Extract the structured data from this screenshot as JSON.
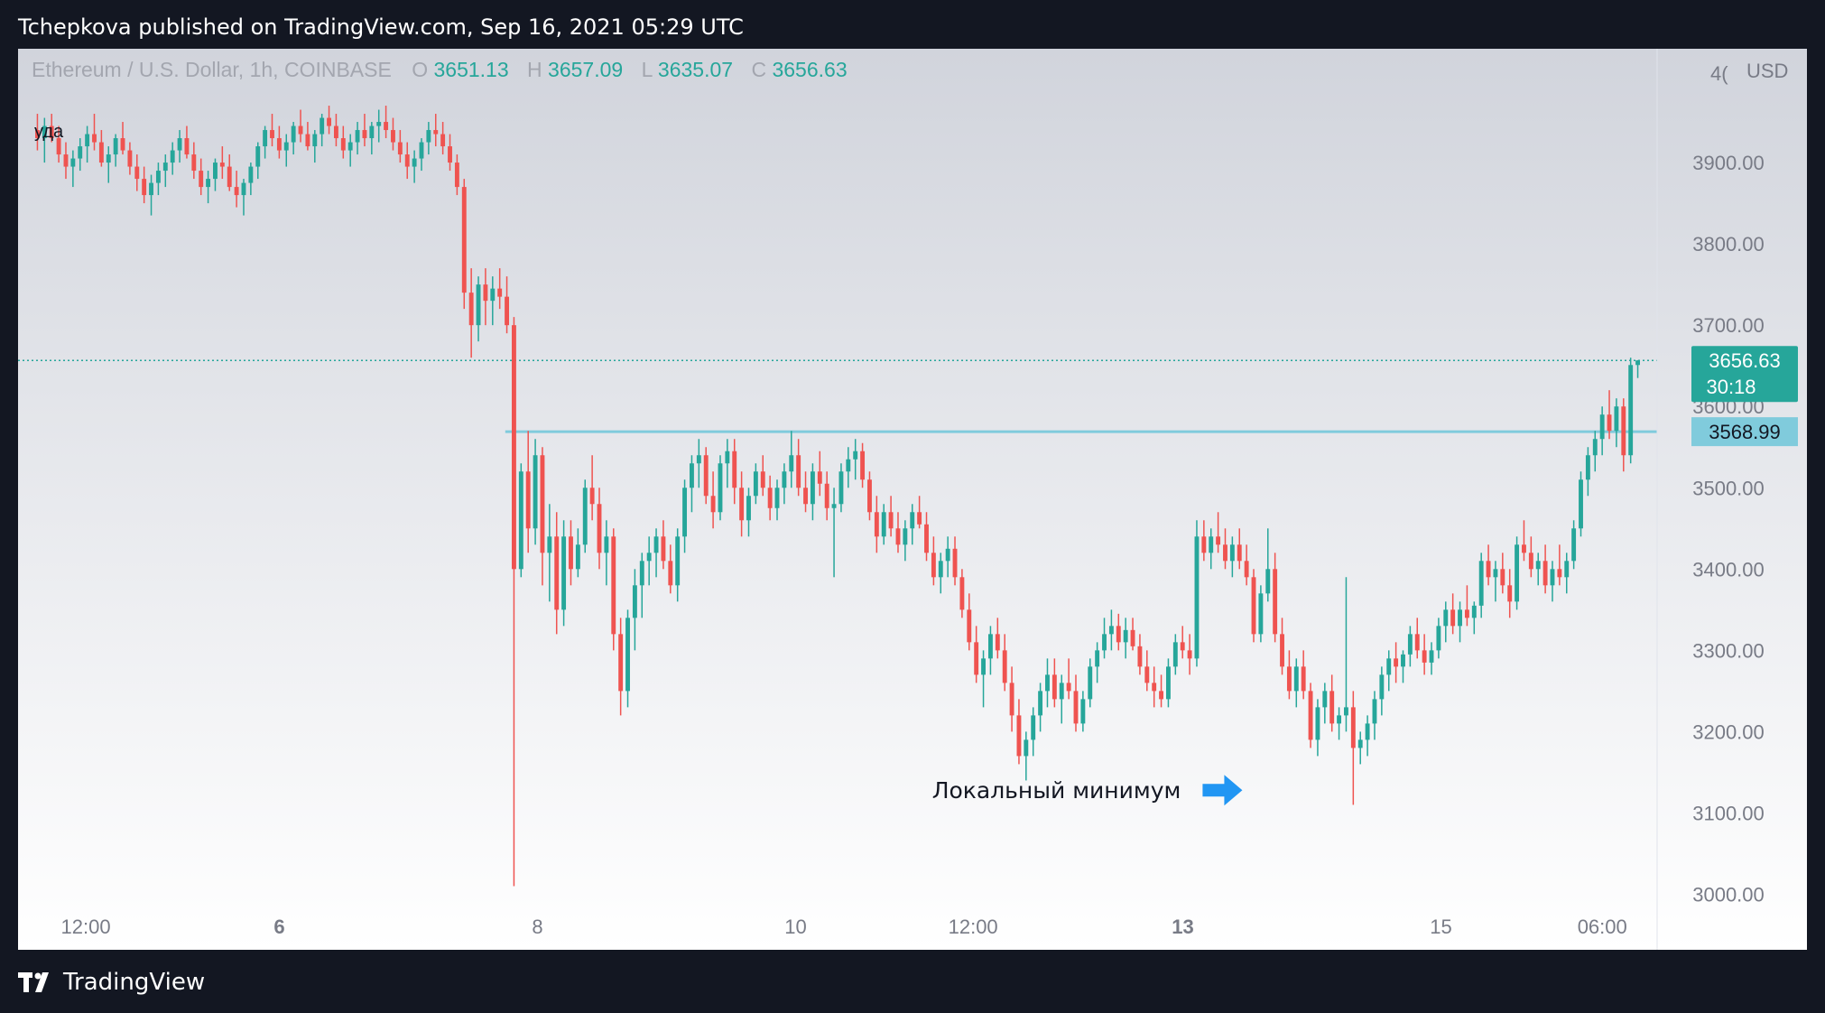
{
  "header": {
    "text": "Tchepkova published on TradingView.com, Sep 16, 2021 05:29 UTC"
  },
  "footer": {
    "brand": "TradingView"
  },
  "chart_data": {
    "type": "candlestick",
    "symbol": "Ethereum / U.S. Dollar, 1h, COINBASE",
    "ohlc": {
      "o_label": "O",
      "o": "3651.13",
      "h_label": "H",
      "h": "3657.09",
      "l_label": "L",
      "l": "3635.07",
      "c_label": "C",
      "c": "3656.63"
    },
    "currency": "USD",
    "y_ticks": [
      3000,
      3100,
      3200,
      3300,
      3400,
      3500,
      3600,
      3700,
      3800,
      3900
    ],
    "y_tick_labels": [
      "3000.00",
      "3100.00",
      "3200.00",
      "3300.00",
      "3400.00",
      "3500.00",
      "3600.00",
      "3700.00",
      "3800.00",
      "3900.00"
    ],
    "ylim": [
      2985,
      4040
    ],
    "x_ticks": [
      {
        "label": "12:00",
        "t": 1.5,
        "bold": false
      },
      {
        "label": "6",
        "t": 7.5,
        "bold": true
      },
      {
        "label": "8",
        "t": 15.5,
        "bold": false
      },
      {
        "label": "10",
        "t": 23.5,
        "bold": false
      },
      {
        "label": "12:00",
        "t": 29.0,
        "bold": false
      },
      {
        "label": "13",
        "t": 35.5,
        "bold": true
      },
      {
        "label": "15",
        "t": 43.5,
        "bold": false
      },
      {
        "label": "06:00",
        "t": 48.5,
        "bold": false
      }
    ],
    "xlim": [
      -0.6,
      50.2
    ],
    "last_price": {
      "value": 3656.63,
      "label": "3656.63",
      "countdown": "30:18",
      "color": "#26a69a"
    },
    "horizontal_line": {
      "value": 3568.99,
      "label": "3568.99",
      "from_t": 14.5,
      "color": "#80cbdc"
    },
    "annotation": {
      "text": "Локальный минимум",
      "arrow_at_value": 3128,
      "arrow_t": 37.4
    },
    "partial_label": "4(",
    "overlay_text": "уда",
    "colors": {
      "up": "#26a69a",
      "down": "#ef5350",
      "arrow": "#2196f3"
    },
    "candles": [
      [
        3940,
        3960,
        3915,
        3930
      ],
      [
        3930,
        3955,
        3900,
        3945
      ],
      [
        3945,
        3960,
        3925,
        3930
      ],
      [
        3930,
        3945,
        3900,
        3910
      ],
      [
        3910,
        3925,
        3880,
        3895
      ],
      [
        3895,
        3915,
        3870,
        3905
      ],
      [
        3905,
        3930,
        3890,
        3920
      ],
      [
        3920,
        3945,
        3900,
        3935
      ],
      [
        3935,
        3960,
        3915,
        3925
      ],
      [
        3925,
        3940,
        3895,
        3900
      ],
      [
        3900,
        3920,
        3875,
        3910
      ],
      [
        3910,
        3935,
        3895,
        3930
      ],
      [
        3930,
        3950,
        3910,
        3915
      ],
      [
        3915,
        3925,
        3885,
        3895
      ],
      [
        3895,
        3910,
        3865,
        3880
      ],
      [
        3880,
        3895,
        3850,
        3860
      ],
      [
        3860,
        3885,
        3835,
        3875
      ],
      [
        3875,
        3900,
        3860,
        3890
      ],
      [
        3890,
        3910,
        3870,
        3900
      ],
      [
        3900,
        3925,
        3885,
        3915
      ],
      [
        3915,
        3940,
        3900,
        3930
      ],
      [
        3930,
        3945,
        3905,
        3910
      ],
      [
        3910,
        3925,
        3880,
        3890
      ],
      [
        3890,
        3905,
        3860,
        3870
      ],
      [
        3870,
        3890,
        3850,
        3880
      ],
      [
        3880,
        3905,
        3865,
        3900
      ],
      [
        3900,
        3920,
        3880,
        3895
      ],
      [
        3895,
        3910,
        3865,
        3870
      ],
      [
        3870,
        3890,
        3845,
        3860
      ],
      [
        3860,
        3880,
        3835,
        3875
      ],
      [
        3875,
        3900,
        3860,
        3895
      ],
      [
        3895,
        3925,
        3880,
        3920
      ],
      [
        3920,
        3945,
        3905,
        3940
      ],
      [
        3940,
        3960,
        3920,
        3930
      ],
      [
        3930,
        3945,
        3905,
        3915
      ],
      [
        3915,
        3935,
        3895,
        3925
      ],
      [
        3925,
        3950,
        3910,
        3945
      ],
      [
        3945,
        3965,
        3925,
        3935
      ],
      [
        3935,
        3950,
        3915,
        3920
      ],
      [
        3920,
        3940,
        3900,
        3935
      ],
      [
        3935,
        3960,
        3920,
        3955
      ],
      [
        3955,
        3970,
        3935,
        3945
      ],
      [
        3945,
        3960,
        3920,
        3930
      ],
      [
        3930,
        3945,
        3905,
        3915
      ],
      [
        3915,
        3935,
        3895,
        3925
      ],
      [
        3925,
        3950,
        3910,
        3940
      ],
      [
        3940,
        3960,
        3920,
        3930
      ],
      [
        3930,
        3950,
        3910,
        3945
      ],
      [
        3945,
        3965,
        3925,
        3950
      ],
      [
        3950,
        3970,
        3930,
        3940
      ],
      [
        3940,
        3955,
        3915,
        3925
      ],
      [
        3925,
        3940,
        3900,
        3910
      ],
      [
        3910,
        3925,
        3880,
        3895
      ],
      [
        3895,
        3915,
        3875,
        3905
      ],
      [
        3905,
        3930,
        3890,
        3925
      ],
      [
        3925,
        3950,
        3910,
        3940
      ],
      [
        3940,
        3960,
        3920,
        3935
      ],
      [
        3935,
        3950,
        3910,
        3920
      ],
      [
        3920,
        3935,
        3890,
        3900
      ],
      [
        3900,
        3910,
        3860,
        3870
      ],
      [
        3870,
        3880,
        3720,
        3740
      ],
      [
        3740,
        3770,
        3660,
        3700
      ],
      [
        3700,
        3760,
        3680,
        3750
      ],
      [
        3750,
        3770,
        3700,
        3730
      ],
      [
        3730,
        3760,
        3700,
        3745
      ],
      [
        3745,
        3770,
        3720,
        3735
      ],
      [
        3735,
        3760,
        3690,
        3700
      ],
      [
        3700,
        3710,
        3010,
        3400
      ],
      [
        3400,
        3530,
        3390,
        3520
      ],
      [
        3520,
        3570,
        3420,
        3450
      ],
      [
        3450,
        3560,
        3430,
        3540
      ],
      [
        3540,
        3550,
        3380,
        3420
      ],
      [
        3420,
        3480,
        3360,
        3440
      ],
      [
        3440,
        3470,
        3320,
        3350
      ],
      [
        3350,
        3460,
        3330,
        3440
      ],
      [
        3440,
        3460,
        3380,
        3400
      ],
      [
        3400,
        3450,
        3390,
        3430
      ],
      [
        3430,
        3510,
        3420,
        3500
      ],
      [
        3500,
        3540,
        3460,
        3480
      ],
      [
        3480,
        3500,
        3400,
        3420
      ],
      [
        3420,
        3460,
        3380,
        3440
      ],
      [
        3440,
        3450,
        3300,
        3320
      ],
      [
        3320,
        3340,
        3220,
        3250
      ],
      [
        3250,
        3350,
        3230,
        3340
      ],
      [
        3340,
        3400,
        3300,
        3380
      ],
      [
        3380,
        3420,
        3340,
        3410
      ],
      [
        3410,
        3440,
        3380,
        3420
      ],
      [
        3420,
        3450,
        3390,
        3440
      ],
      [
        3440,
        3460,
        3400,
        3410
      ],
      [
        3410,
        3430,
        3370,
        3380
      ],
      [
        3380,
        3450,
        3360,
        3440
      ],
      [
        3440,
        3510,
        3420,
        3500
      ],
      [
        3500,
        3540,
        3470,
        3530
      ],
      [
        3530,
        3560,
        3500,
        3540
      ],
      [
        3540,
        3550,
        3480,
        3490
      ],
      [
        3490,
        3520,
        3450,
        3470
      ],
      [
        3470,
        3540,
        3460,
        3530
      ],
      [
        3530,
        3560,
        3500,
        3545
      ],
      [
        3545,
        3560,
        3480,
        3500
      ],
      [
        3500,
        3520,
        3440,
        3460
      ],
      [
        3460,
        3500,
        3440,
        3490
      ],
      [
        3490,
        3530,
        3480,
        3520
      ],
      [
        3520,
        3540,
        3490,
        3500
      ],
      [
        3500,
        3515,
        3460,
        3475
      ],
      [
        3475,
        3510,
        3460,
        3500
      ],
      [
        3500,
        3530,
        3480,
        3520
      ],
      [
        3520,
        3570,
        3500,
        3540
      ],
      [
        3540,
        3560,
        3490,
        3500
      ],
      [
        3500,
        3520,
        3470,
        3480
      ],
      [
        3480,
        3530,
        3460,
        3520
      ],
      [
        3520,
        3545,
        3490,
        3505
      ],
      [
        3505,
        3520,
        3460,
        3475
      ],
      [
        3475,
        3500,
        3390,
        3480
      ],
      [
        3480,
        3530,
        3470,
        3520
      ],
      [
        3520,
        3550,
        3500,
        3535
      ],
      [
        3535,
        3560,
        3510,
        3545
      ],
      [
        3545,
        3555,
        3500,
        3510
      ],
      [
        3510,
        3520,
        3460,
        3470
      ],
      [
        3470,
        3490,
        3420,
        3440
      ],
      [
        3440,
        3480,
        3430,
        3470
      ],
      [
        3470,
        3490,
        3440,
        3450
      ],
      [
        3450,
        3470,
        3420,
        3430
      ],
      [
        3430,
        3460,
        3410,
        3450
      ],
      [
        3450,
        3480,
        3430,
        3470
      ],
      [
        3470,
        3490,
        3450,
        3455
      ],
      [
        3455,
        3470,
        3410,
        3420
      ],
      [
        3420,
        3440,
        3380,
        3390
      ],
      [
        3390,
        3420,
        3370,
        3410
      ],
      [
        3410,
        3440,
        3390,
        3425
      ],
      [
        3425,
        3440,
        3380,
        3390
      ],
      [
        3390,
        3400,
        3340,
        3350
      ],
      [
        3350,
        3370,
        3300,
        3310
      ],
      [
        3310,
        3330,
        3260,
        3270
      ],
      [
        3270,
        3300,
        3230,
        3290
      ],
      [
        3290,
        3330,
        3270,
        3320
      ],
      [
        3320,
        3340,
        3290,
        3300
      ],
      [
        3300,
        3320,
        3250,
        3260
      ],
      [
        3260,
        3280,
        3200,
        3220
      ],
      [
        3220,
        3240,
        3160,
        3170
      ],
      [
        3170,
        3200,
        3140,
        3190
      ],
      [
        3190,
        3230,
        3170,
        3220
      ],
      [
        3220,
        3260,
        3200,
        3250
      ],
      [
        3250,
        3290,
        3230,
        3270
      ],
      [
        3270,
        3290,
        3230,
        3240
      ],
      [
        3240,
        3270,
        3210,
        3260
      ],
      [
        3260,
        3290,
        3240,
        3250
      ],
      [
        3250,
        3270,
        3200,
        3210
      ],
      [
        3210,
        3250,
        3200,
        3240
      ],
      [
        3240,
        3290,
        3230,
        3280
      ],
      [
        3280,
        3310,
        3260,
        3300
      ],
      [
        3300,
        3340,
        3290,
        3320
      ],
      [
        3320,
        3350,
        3300,
        3330
      ],
      [
        3330,
        3345,
        3300,
        3310
      ],
      [
        3310,
        3340,
        3290,
        3325
      ],
      [
        3325,
        3340,
        3300,
        3305
      ],
      [
        3305,
        3320,
        3270,
        3280
      ],
      [
        3280,
        3300,
        3250,
        3260
      ],
      [
        3260,
        3280,
        3230,
        3250
      ],
      [
        3250,
        3270,
        3230,
        3240
      ],
      [
        3240,
        3290,
        3230,
        3280
      ],
      [
        3280,
        3320,
        3270,
        3310
      ],
      [
        3310,
        3330,
        3290,
        3300
      ],
      [
        3300,
        3320,
        3270,
        3290
      ],
      [
        3290,
        3460,
        3280,
        3440
      ],
      [
        3440,
        3460,
        3410,
        3420
      ],
      [
        3420,
        3450,
        3400,
        3440
      ],
      [
        3440,
        3470,
        3420,
        3430
      ],
      [
        3430,
        3450,
        3400,
        3410
      ],
      [
        3410,
        3440,
        3390,
        3430
      ],
      [
        3430,
        3450,
        3400,
        3410
      ],
      [
        3410,
        3430,
        3380,
        3390
      ],
      [
        3390,
        3400,
        3310,
        3320
      ],
      [
        3320,
        3380,
        3310,
        3370
      ],
      [
        3370,
        3450,
        3360,
        3400
      ],
      [
        3400,
        3420,
        3310,
        3320
      ],
      [
        3320,
        3340,
        3270,
        3280
      ],
      [
        3280,
        3300,
        3240,
        3250
      ],
      [
        3250,
        3290,
        3230,
        3280
      ],
      [
        3280,
        3300,
        3240,
        3250
      ],
      [
        3250,
        3260,
        3180,
        3190
      ],
      [
        3190,
        3240,
        3170,
        3230
      ],
      [
        3230,
        3260,
        3210,
        3250
      ],
      [
        3250,
        3270,
        3200,
        3210
      ],
      [
        3210,
        3230,
        3190,
        3220
      ],
      [
        3220,
        3390,
        3200,
        3230
      ],
      [
        3230,
        3250,
        3110,
        3180
      ],
      [
        3180,
        3200,
        3160,
        3190
      ],
      [
        3190,
        3220,
        3170,
        3210
      ],
      [
        3210,
        3250,
        3190,
        3240
      ],
      [
        3240,
        3280,
        3220,
        3270
      ],
      [
        3270,
        3300,
        3250,
        3290
      ],
      [
        3290,
        3310,
        3260,
        3280
      ],
      [
        3280,
        3300,
        3260,
        3295
      ],
      [
        3295,
        3330,
        3280,
        3320
      ],
      [
        3320,
        3340,
        3290,
        3300
      ],
      [
        3300,
        3320,
        3270,
        3285
      ],
      [
        3285,
        3310,
        3270,
        3300
      ],
      [
        3300,
        3340,
        3290,
        3330
      ],
      [
        3330,
        3360,
        3310,
        3350
      ],
      [
        3350,
        3370,
        3320,
        3330
      ],
      [
        3330,
        3360,
        3310,
        3350
      ],
      [
        3350,
        3380,
        3330,
        3340
      ],
      [
        3340,
        3360,
        3320,
        3355
      ],
      [
        3355,
        3420,
        3340,
        3410
      ],
      [
        3410,
        3430,
        3380,
        3390
      ],
      [
        3390,
        3410,
        3360,
        3400
      ],
      [
        3400,
        3420,
        3370,
        3380
      ],
      [
        3380,
        3400,
        3340,
        3360
      ],
      [
        3360,
        3440,
        3350,
        3430
      ],
      [
        3430,
        3460,
        3410,
        3420
      ],
      [
        3420,
        3440,
        3390,
        3400
      ],
      [
        3400,
        3420,
        3380,
        3410
      ],
      [
        3410,
        3430,
        3370,
        3380
      ],
      [
        3380,
        3410,
        3360,
        3400
      ],
      [
        3400,
        3430,
        3380,
        3390
      ],
      [
        3390,
        3420,
        3370,
        3410
      ],
      [
        3410,
        3460,
        3400,
        3450
      ],
      [
        3450,
        3520,
        3440,
        3510
      ],
      [
        3510,
        3550,
        3490,
        3540
      ],
      [
        3540,
        3570,
        3520,
        3560
      ],
      [
        3560,
        3600,
        3540,
        3590
      ],
      [
        3590,
        3620,
        3560,
        3570
      ],
      [
        3570,
        3610,
        3550,
        3600
      ],
      [
        3600,
        3610,
        3520,
        3540
      ],
      [
        3540,
        3660,
        3530,
        3651
      ],
      [
        3651,
        3657,
        3635,
        3656.63
      ]
    ]
  }
}
